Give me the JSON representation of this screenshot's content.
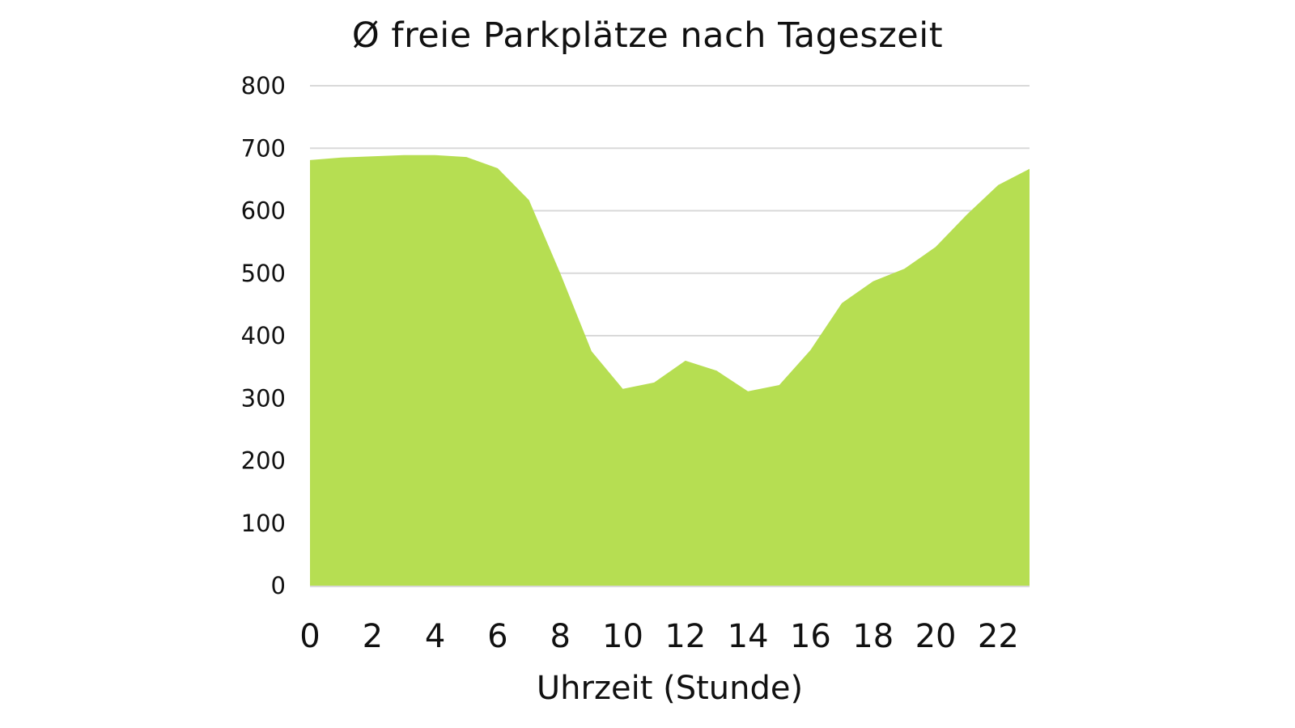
{
  "chart_data": {
    "type": "area",
    "title": "Ø freie Parkplätze nach Tageszeit",
    "xlabel": "Uhrzeit (Stunde)",
    "ylabel": "",
    "x": [
      0,
      1,
      2,
      3,
      4,
      5,
      6,
      7,
      8,
      9,
      10,
      11,
      12,
      13,
      14,
      15,
      16,
      17,
      18,
      19,
      20,
      21,
      22,
      23
    ],
    "x_tick_labels": [
      "0",
      "2",
      "4",
      "6",
      "8",
      "10",
      "12",
      "14",
      "16",
      "18",
      "20",
      "22"
    ],
    "y_tick_labels": [
      "0",
      "100",
      "200",
      "300",
      "400",
      "500",
      "600",
      "700",
      "800"
    ],
    "series": [
      {
        "name": "Ø freie Parkplätze",
        "color": "#B6DE52",
        "values": [
          681,
          685,
          687,
          689,
          689,
          686,
          668,
          617,
          500,
          375,
          315,
          325,
          360,
          344,
          311,
          321,
          377,
          452,
          487,
          507,
          542,
          594,
          641,
          667
        ]
      }
    ],
    "ylim": [
      0,
      800
    ],
    "xlim": [
      0,
      23
    ],
    "grid": true,
    "gridline_color": "#d9d9d9",
    "legend": "none"
  }
}
